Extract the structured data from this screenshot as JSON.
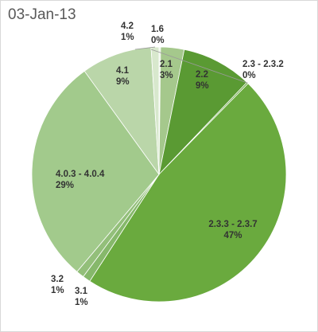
{
  "chart_data": {
    "type": "pie",
    "title": "03-Jan-13",
    "slices": [
      {
        "label": "1.6",
        "value": 0.2,
        "pct": "0%",
        "color": "#e8f1e1"
      },
      {
        "label": "2.1",
        "value": 3,
        "pct": "3%",
        "color": "#a5c88c"
      },
      {
        "label": "2.2",
        "value": 9,
        "pct": "9%",
        "color": "#5a9a33"
      },
      {
        "label": "2.3 - 2.3.2",
        "value": 0.2,
        "pct": "0%",
        "color": "#5e9e36"
      },
      {
        "label": "2.3.3 - 2.3.7",
        "value": 47,
        "pct": "47%",
        "color": "#6aaa3e"
      },
      {
        "label": "3.1",
        "value": 1,
        "pct": "1%",
        "color": "#86b86b"
      },
      {
        "label": "3.2",
        "value": 1,
        "pct": "1%",
        "color": "#93bf7a"
      },
      {
        "label": "4.0.3 - 4.0.4",
        "value": 29,
        "pct": "29%",
        "color": "#a2ca8c"
      },
      {
        "label": "4.1",
        "value": 9,
        "pct": "9%",
        "color": "#bad6a9"
      },
      {
        "label": "4.2",
        "value": 1,
        "pct": "1%",
        "color": "#d8e8cd"
      }
    ],
    "legend": "none"
  }
}
